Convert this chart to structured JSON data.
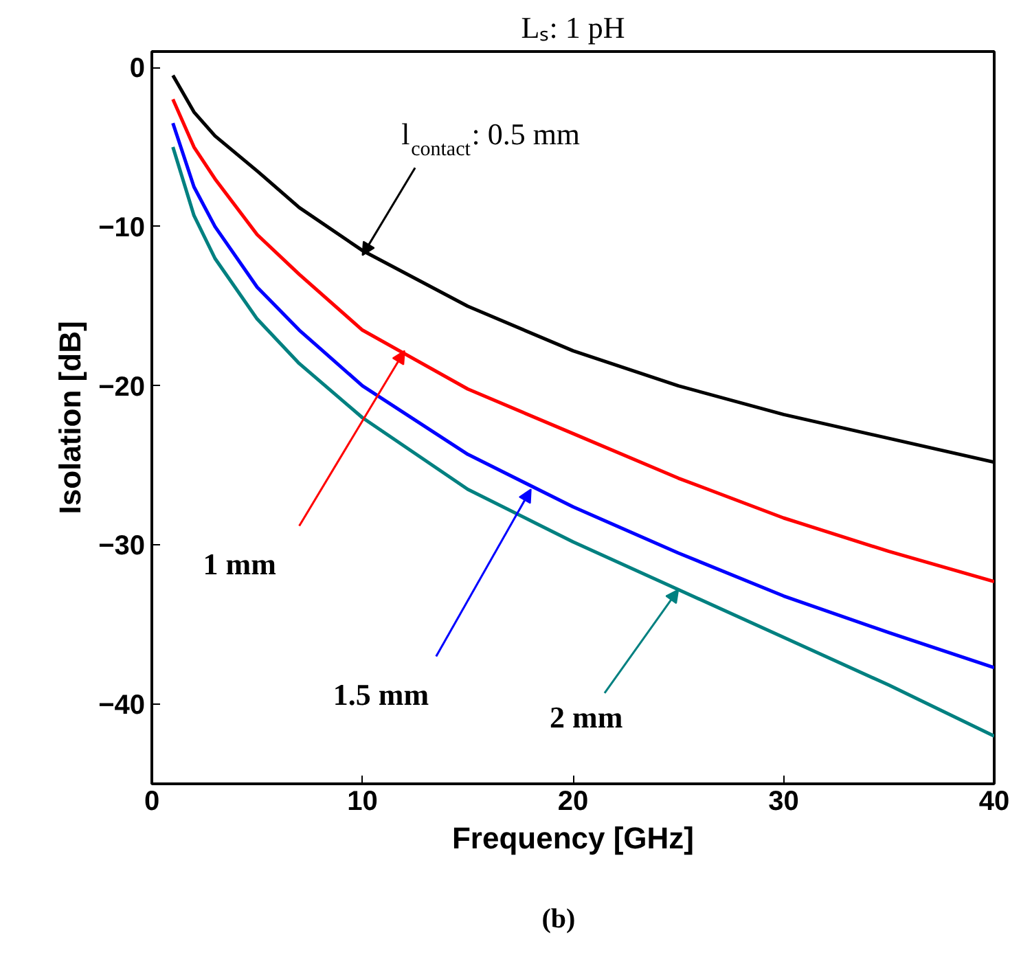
{
  "chart_data": {
    "type": "line",
    "title": "Lₛ: 1 pH",
    "xlabel": "Frequency [GHz]",
    "ylabel": "Isolation [dB]",
    "x": [
      1,
      2,
      3,
      5,
      7,
      10,
      15,
      20,
      25,
      30,
      35,
      40
    ],
    "series": [
      {
        "color": "#000000",
        "values": [
          -0.5,
          -2.8,
          -4.3,
          -6.5,
          -8.8,
          -11.5,
          -15,
          -17.8,
          -20,
          -21.8,
          -23.3,
          -24.8
        ]
      },
      {
        "color": "#ff0000",
        "values": [
          -2,
          -5,
          -7,
          -10.5,
          -13,
          -16.5,
          -20.2,
          -23,
          -25.8,
          -28.3,
          -30.4,
          -32.3
        ]
      },
      {
        "color": "#0000ff",
        "values": [
          -3.5,
          -7.5,
          -10,
          -13.8,
          -16.5,
          -20,
          -24.3,
          -27.6,
          -30.5,
          -33.2,
          -35.5,
          -37.7
        ]
      },
      {
        "color": "#008080",
        "values": [
          -5,
          -9.3,
          -12,
          -15.8,
          -18.6,
          -22,
          -26.5,
          -29.8,
          -32.8,
          -35.8,
          -38.8,
          -42
        ]
      }
    ],
    "xlim": [
      0,
      40
    ],
    "ylim": [
      -45,
      1
    ],
    "xticks": [
      0,
      10,
      20,
      30,
      40
    ],
    "yticks": [
      0,
      -10,
      -20,
      -30,
      -40
    ],
    "line_style": "solid",
    "marker": "none",
    "annotations": [
      {
        "text": "l$_{contact}$: 0.5 mm",
        "x": 10,
        "y": -11.8
      },
      {
        "text": "1 mm",
        "x": 12,
        "y": -17.8
      },
      {
        "text": "1.5 mm",
        "x": 18,
        "y": -26.5
      },
      {
        "text": "2 mm",
        "x": 25,
        "y": -32.8
      },
      "(b)"
    ]
  }
}
